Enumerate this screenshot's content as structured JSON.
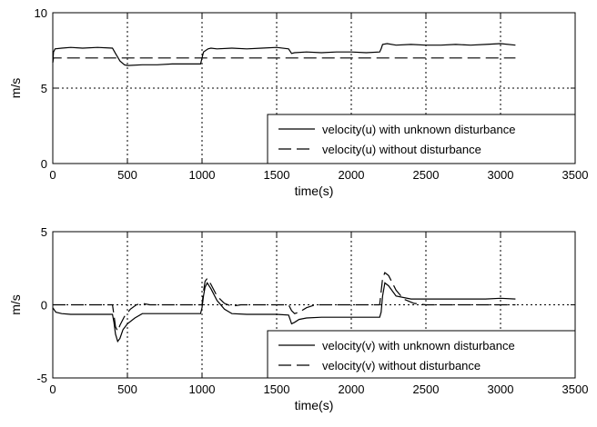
{
  "chart_data": [
    {
      "type": "line",
      "xlabel": "time(s)",
      "ylabel": "m/s",
      "xlim": [
        0,
        3500
      ],
      "ylim": [
        0,
        10
      ],
      "xticks": [
        0,
        500,
        1000,
        1500,
        2000,
        2500,
        3000,
        3500
      ],
      "yticks": [
        0,
        5,
        10
      ],
      "grid": true,
      "legend_position": "bottom-right",
      "series": [
        {
          "name": "velocity(u) with unknown disturbance",
          "style": "solid",
          "color": "#000000",
          "x": [
            0,
            5,
            15,
            60,
            120,
            200,
            300,
            400,
            420,
            450,
            480,
            500,
            600,
            700,
            800,
            900,
            990,
            1000,
            1010,
            1040,
            1060,
            1100,
            1200,
            1300,
            1400,
            1500,
            1580,
            1600,
            1620,
            1700,
            1800,
            1900,
            2000,
            2100,
            2190,
            2200,
            2210,
            2240,
            2300,
            2400,
            2500,
            2600,
            2700,
            2800,
            2900,
            3000,
            3100
          ],
          "y": [
            6.7,
            7.4,
            7.6,
            7.65,
            7.7,
            7.65,
            7.7,
            7.65,
            7.3,
            6.8,
            6.55,
            6.5,
            6.55,
            6.55,
            6.6,
            6.6,
            6.6,
            7.0,
            7.4,
            7.6,
            7.65,
            7.6,
            7.65,
            7.6,
            7.65,
            7.7,
            7.6,
            7.3,
            7.35,
            7.4,
            7.35,
            7.4,
            7.4,
            7.35,
            7.4,
            7.6,
            7.9,
            7.95,
            7.85,
            7.9,
            7.85,
            7.85,
            7.9,
            7.85,
            7.9,
            7.95,
            7.85
          ]
        },
        {
          "name": "velocity(u) without disturbance",
          "style": "dashed",
          "color": "#000000",
          "x": [
            0,
            5,
            3100
          ],
          "y": [
            6.7,
            7.0,
            7.0
          ]
        }
      ]
    },
    {
      "type": "line",
      "xlabel": "time(s)",
      "ylabel": "m/s",
      "xlim": [
        0,
        3500
      ],
      "ylim": [
        -5,
        5
      ],
      "xticks": [
        0,
        500,
        1000,
        1500,
        2000,
        2500,
        3000,
        3500
      ],
      "yticks": [
        -5,
        0,
        5
      ],
      "grid": true,
      "legend_position": "bottom-right",
      "series": [
        {
          "name": "velocity(v) with unknown disturbance",
          "style": "solid",
          "color": "#000000",
          "x": [
            0,
            20,
            60,
            120,
            200,
            300,
            400,
            410,
            420,
            435,
            450,
            470,
            500,
            550,
            600,
            700,
            800,
            900,
            990,
            1000,
            1010,
            1020,
            1035,
            1060,
            1100,
            1150,
            1200,
            1300,
            1400,
            1500,
            1580,
            1590,
            1600,
            1620,
            1650,
            1700,
            1800,
            1900,
            2000,
            2100,
            2190,
            2200,
            2210,
            2225,
            2250,
            2300,
            2400,
            2500,
            2600,
            2700,
            2800,
            2900,
            3000,
            3100
          ],
          "y": [
            -0.2,
            -0.5,
            -0.6,
            -0.65,
            -0.65,
            -0.65,
            -0.65,
            -1.2,
            -2.0,
            -2.5,
            -2.3,
            -1.7,
            -1.3,
            -0.9,
            -0.6,
            -0.6,
            -0.6,
            -0.6,
            -0.6,
            -0.2,
            0.6,
            1.2,
            1.5,
            1.1,
            0.3,
            -0.3,
            -0.6,
            -0.65,
            -0.65,
            -0.65,
            -0.7,
            -1.0,
            -1.3,
            -1.2,
            -1.0,
            -0.9,
            -0.85,
            -0.85,
            -0.85,
            -0.85,
            -0.85,
            -0.5,
            0.6,
            1.5,
            1.3,
            0.6,
            0.4,
            0.4,
            0.4,
            0.4,
            0.4,
            0.4,
            0.45,
            0.4
          ]
        },
        {
          "name": "velocity(v) without disturbance",
          "style": "dashed",
          "color": "#000000",
          "x": [
            0,
            400,
            410,
            420,
            435,
            450,
            480,
            520,
            560,
            600,
            650,
            1000,
            1010,
            1020,
            1035,
            1060,
            1100,
            1150,
            1200,
            1260,
            1580,
            1600,
            1620,
            1650,
            1700,
            1760,
            2190,
            2200,
            2210,
            2225,
            2250,
            2300,
            2350,
            2420,
            2500,
            3100
          ],
          "y": [
            0,
            0,
            -0.7,
            -1.5,
            -1.8,
            -1.4,
            -0.8,
            -0.3,
            0.0,
            0.1,
            0.0,
            0.0,
            0.9,
            1.6,
            1.8,
            1.4,
            0.6,
            0.1,
            -0.1,
            0.0,
            0.0,
            -0.4,
            -0.6,
            -0.5,
            -0.2,
            0.0,
            0.0,
            0.9,
            1.8,
            2.2,
            2.0,
            1.0,
            0.4,
            0.1,
            0.0,
            0.0
          ]
        }
      ]
    }
  ]
}
